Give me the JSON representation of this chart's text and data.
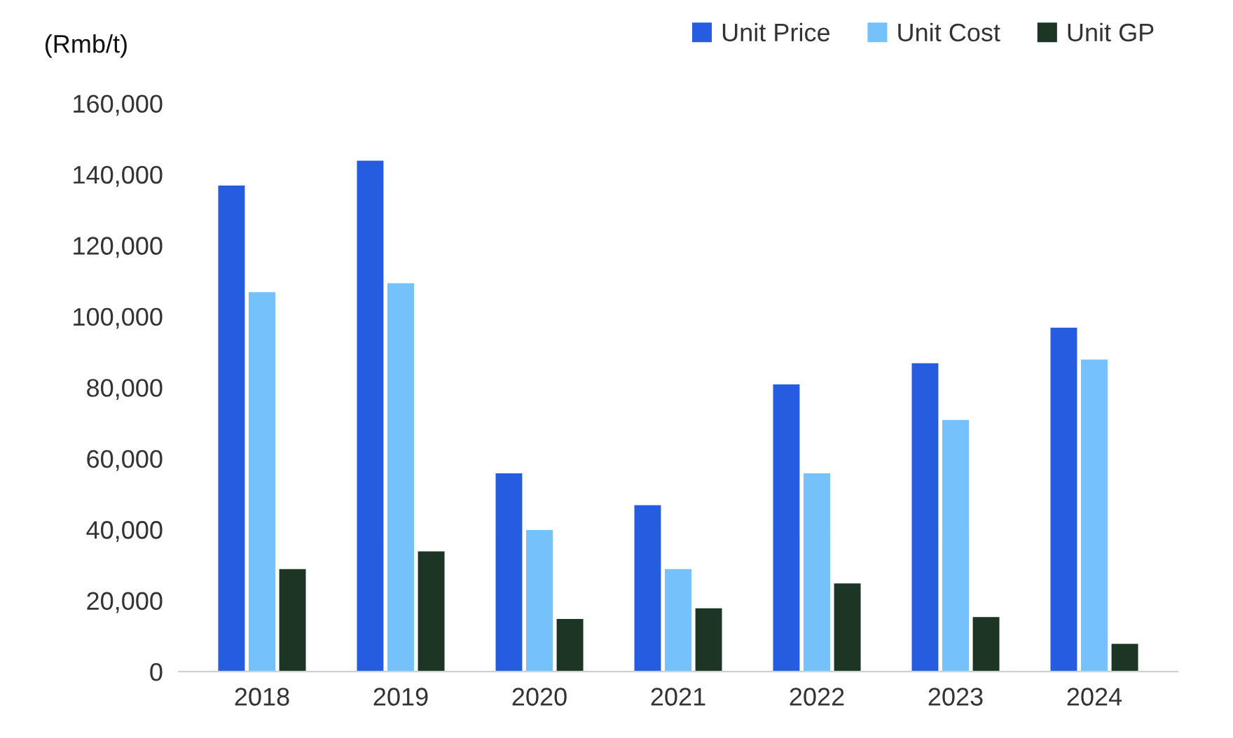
{
  "chart_data": {
    "type": "bar",
    "ylabel": "(Rmb/t)",
    "categories": [
      "2018",
      "2019",
      "2020",
      "2021",
      "2022",
      "2023",
      "2024"
    ],
    "series": [
      {
        "name": "Unit Price",
        "color": "#255ce0",
        "values": [
          137000,
          144000,
          56000,
          47000,
          81000,
          87000,
          97000
        ]
      },
      {
        "name": "Unit Cost",
        "color": "#74c1fb",
        "values": [
          107000,
          109500,
          40000,
          29000,
          56000,
          71000,
          88000
        ]
      },
      {
        "name": "Unit GP",
        "color": "#1c3524",
        "values": [
          29000,
          34000,
          15000,
          18000,
          25000,
          15500,
          8000
        ]
      }
    ],
    "ylim": [
      0,
      160000
    ],
    "yticks": [
      {
        "value": 0,
        "label": "0"
      },
      {
        "value": 20000,
        "label": "20,000"
      },
      {
        "value": 40000,
        "label": "40,000"
      },
      {
        "value": 60000,
        "label": "60,000"
      },
      {
        "value": 80000,
        "label": "80,000"
      },
      {
        "value": 100000,
        "label": "100,000"
      },
      {
        "value": 120000,
        "label": "120,000"
      },
      {
        "value": 140000,
        "label": "140,000"
      },
      {
        "value": 160000,
        "label": "160,000"
      }
    ],
    "grid": false,
    "legend": "top right"
  }
}
